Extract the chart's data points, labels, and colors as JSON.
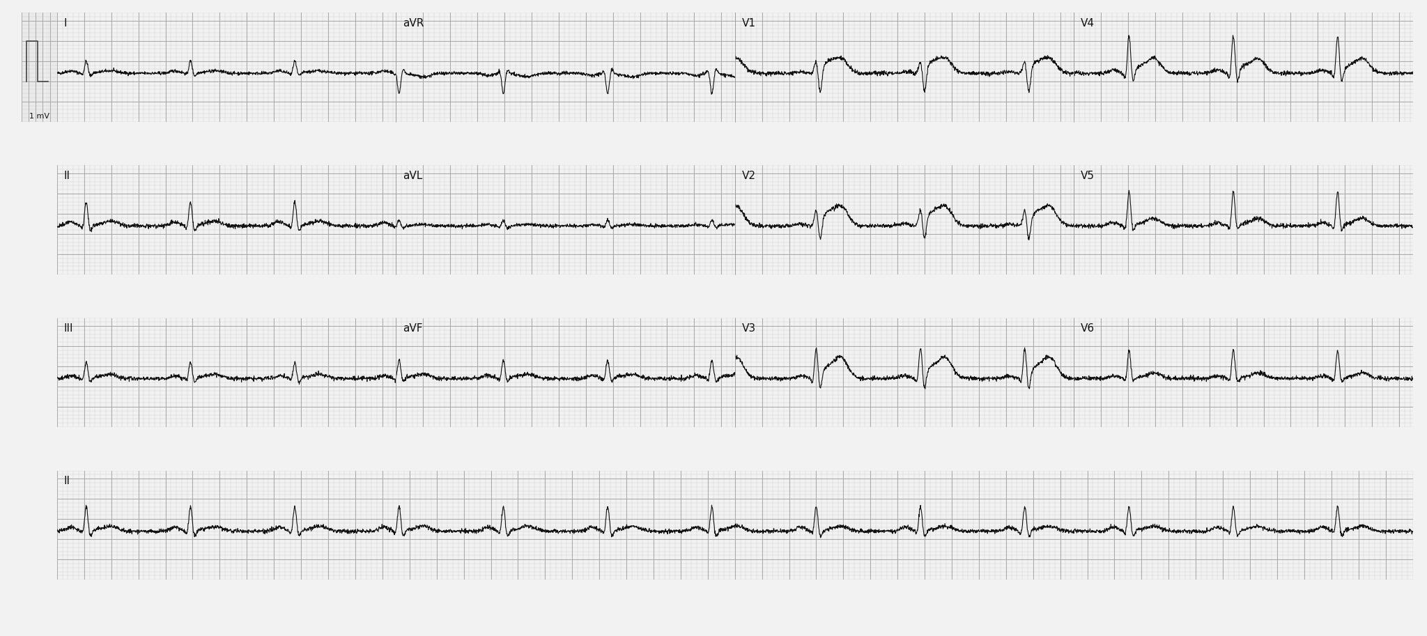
{
  "bg_color": "#f0f0f0",
  "grid_major_color": "#aaaaaa",
  "grid_minor_color": "#cccccc",
  "ecg_color": "#111111",
  "text_color": "#111111",
  "rows": 4,
  "row_labels": [
    "I",
    "II",
    "III",
    "II"
  ],
  "col_labels_row0": [
    "I",
    "aVR",
    "V1",
    "V4"
  ],
  "col_labels_row1": [
    "II",
    "aVL",
    "V2",
    "V5"
  ],
  "col_labels_row2": [
    "III",
    "aVF",
    "V3",
    "V6"
  ],
  "col_labels_row3": [
    "II"
  ],
  "sample_rate": 500,
  "duration_per_strip": 2.5,
  "paper_speed": 25,
  "amplitude_scale": 1.0,
  "fig_width": 20.48,
  "fig_height": 9.13,
  "dpi": 100
}
